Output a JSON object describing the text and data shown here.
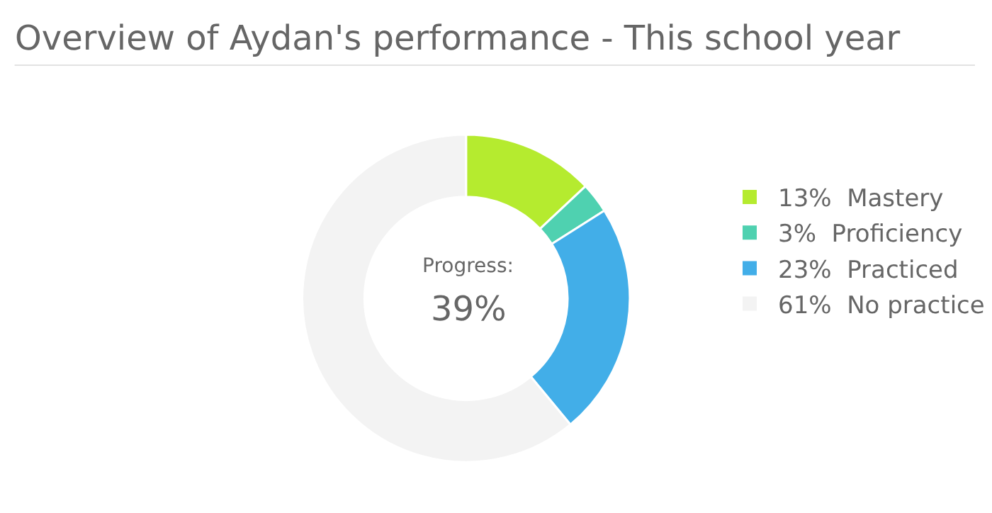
{
  "chart_data": {
    "type": "donut",
    "title": "Overview of Aydan's performance - This school year",
    "categories": [
      "Mastery",
      "Proficiency",
      "Practiced",
      "No practice"
    ],
    "values": [
      13,
      3,
      23,
      61
    ],
    "value_labels": [
      "13%",
      "3%",
      "23%",
      "61%"
    ],
    "colors": [
      "#b5eb2f",
      "#4fd1b0",
      "#42aee8",
      "#f3f3f3"
    ],
    "annotations": [
      "Progress:",
      "39%"
    ],
    "legend": "right"
  }
}
